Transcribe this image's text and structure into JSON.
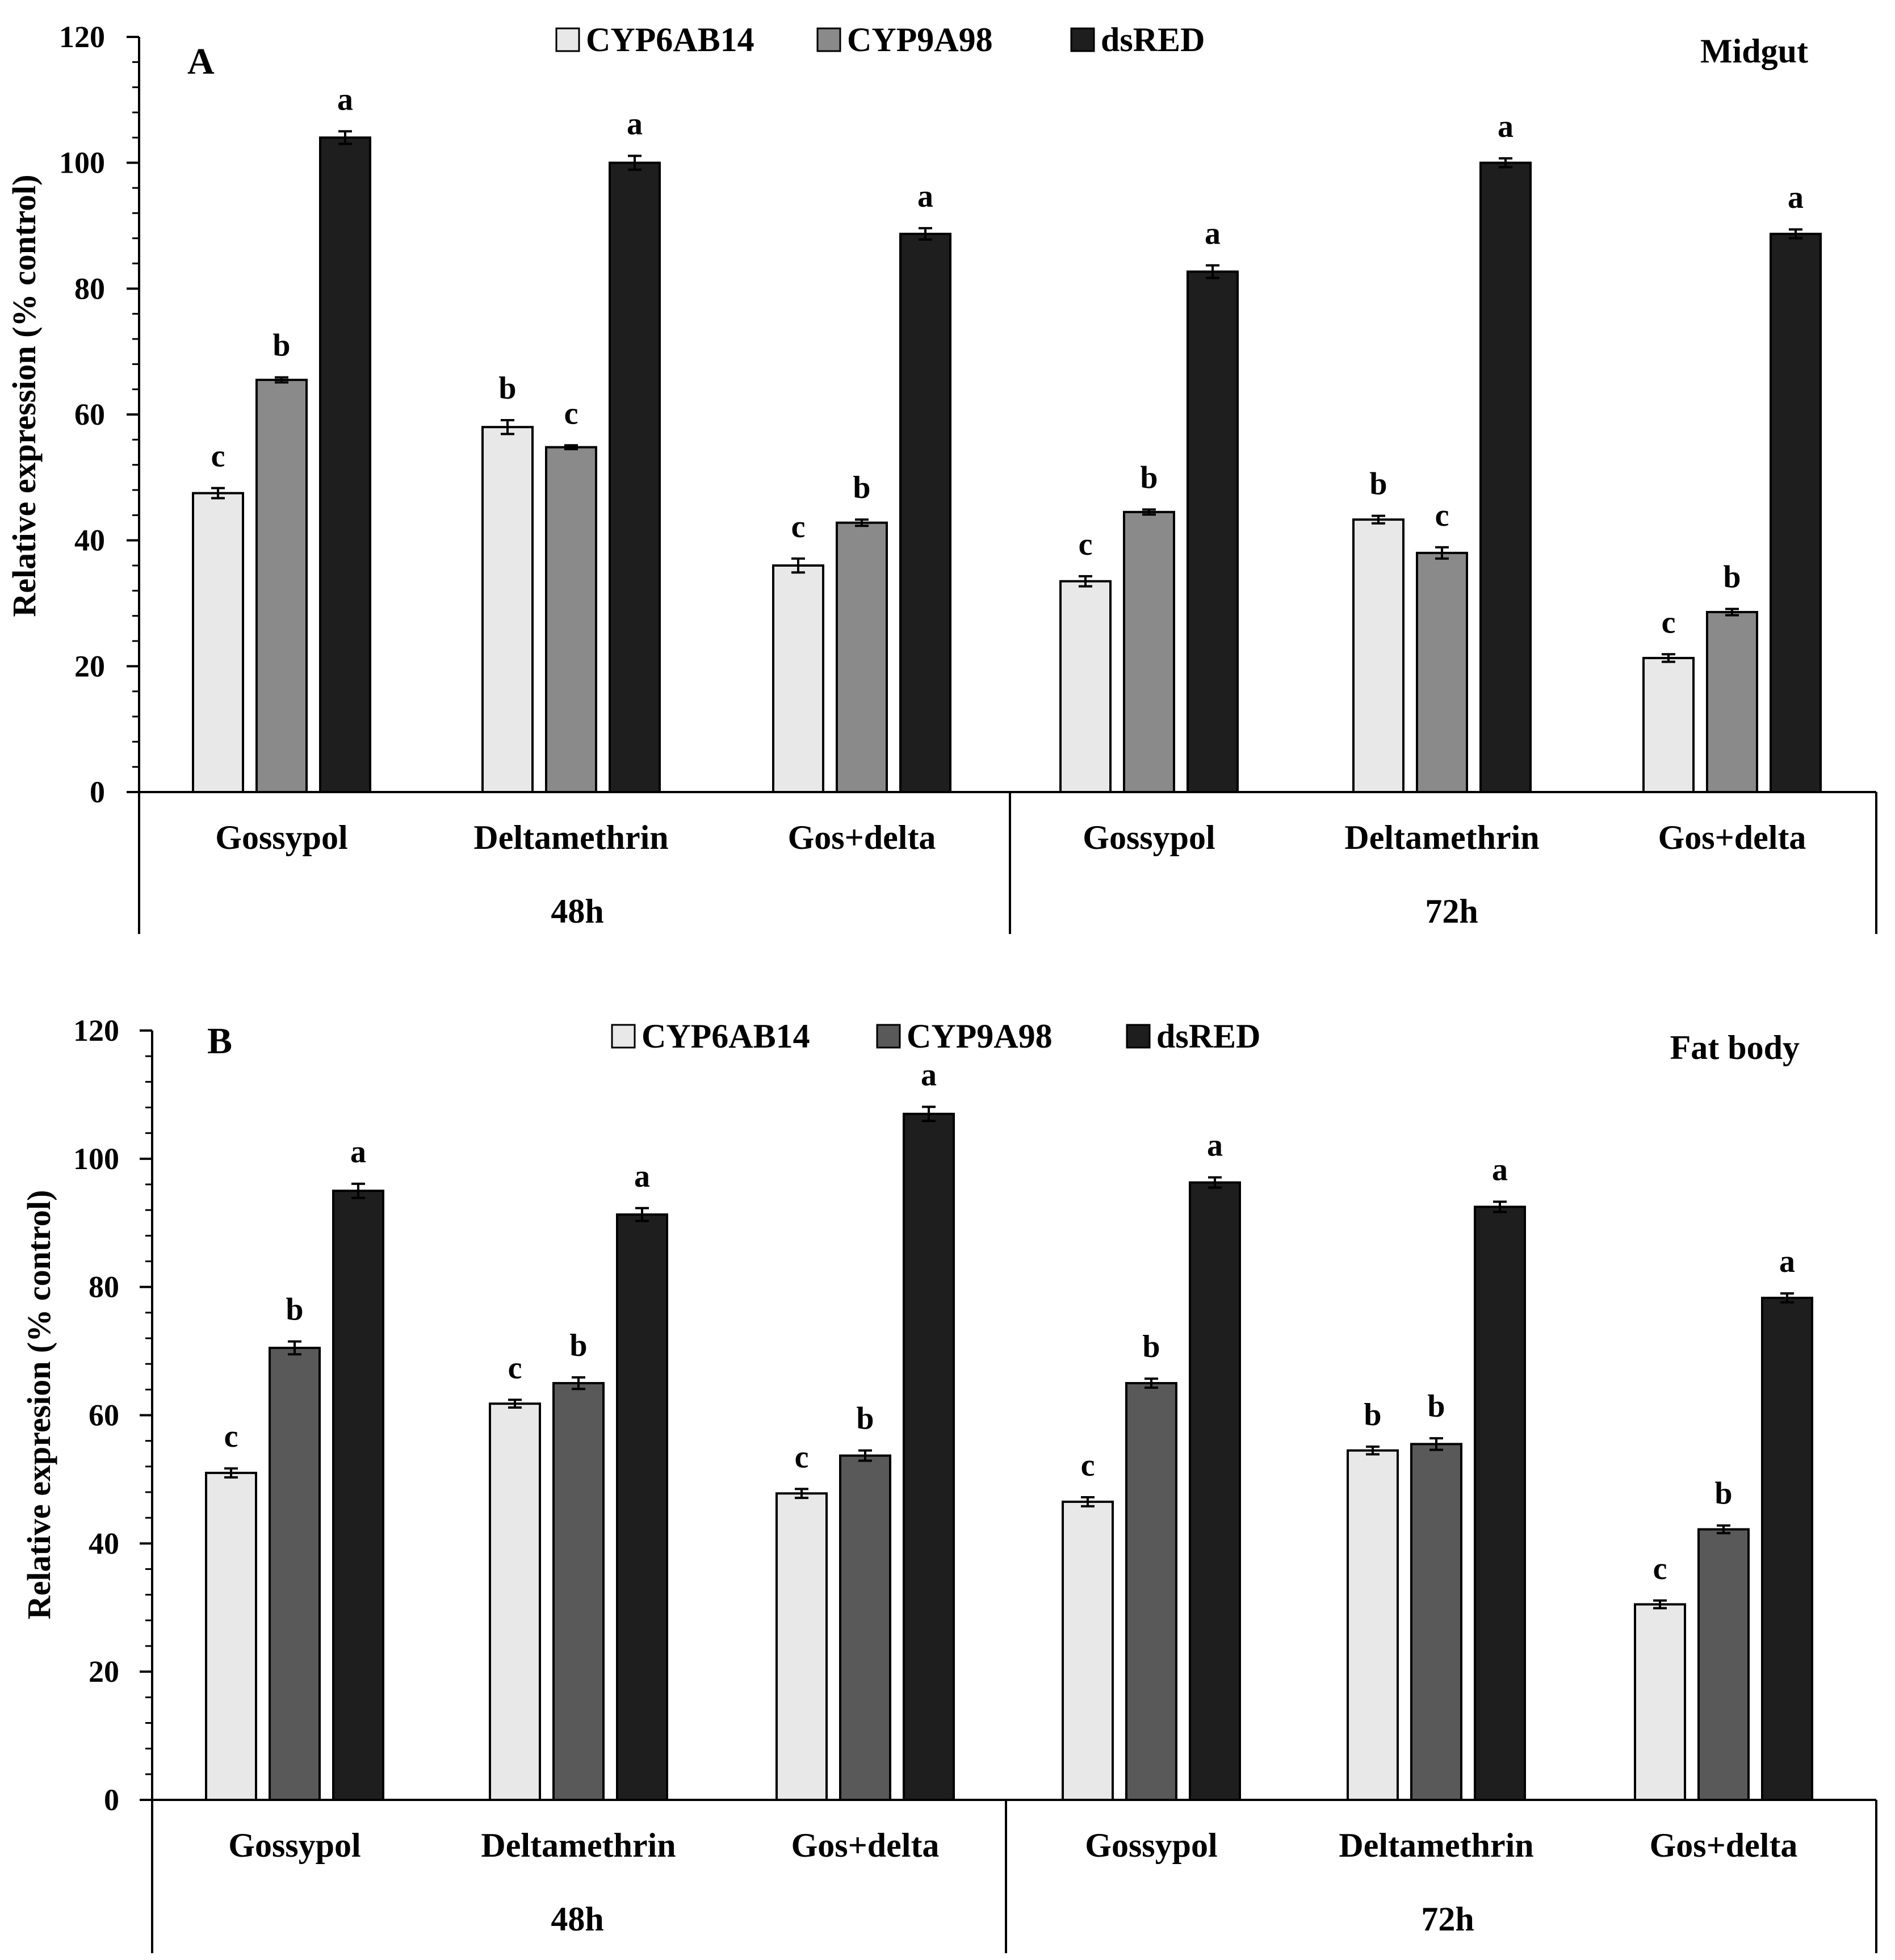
{
  "colors": {
    "CYP6AB14": "#e8e8e8",
    "CYP9A98_A": "#8a8a8a",
    "CYP9A98_B": "#595959",
    "dsRED": "#1e1e1e",
    "axis": "#000000"
  },
  "chart_data": [
    {
      "type": "bar",
      "panel": "A",
      "tissue": "Midgut",
      "ylabel": "Relative expression (% control)",
      "ylim": [
        0,
        120
      ],
      "yticks": [
        "0",
        "20",
        "40",
        "60",
        "80",
        "100",
        "120"
      ],
      "legend_position": "top-center",
      "groups": [
        "48h",
        "72h"
      ],
      "categories": [
        "Gossypol",
        "Deltamethrin",
        "Gos+delta",
        "Gossypol",
        "Deltamethrin",
        "Gos+delta"
      ],
      "series": [
        {
          "name": "CYP6AB14",
          "values": [
            47.5,
            58,
            36,
            33.5,
            43.3,
            21.3
          ],
          "errors": [
            0.8,
            1.1,
            1.1,
            0.8,
            0.6,
            0.6
          ],
          "sig": [
            "c",
            "b",
            "c",
            "c",
            "b",
            "c"
          ]
        },
        {
          "name": "CYP9A98",
          "values": [
            65.5,
            54.8,
            42.8,
            44.5,
            38,
            28.6
          ],
          "errors": [
            0.4,
            0.3,
            0.5,
            0.4,
            0.9,
            0.5
          ],
          "sig": [
            "b",
            "c",
            "b",
            "b",
            "c",
            "b"
          ]
        },
        {
          "name": "dsRED",
          "values": [
            104,
            100,
            88.7,
            82.7,
            100,
            88.7
          ],
          "errors": [
            1.0,
            1.1,
            0.9,
            1.0,
            0.7,
            0.7
          ],
          "sig": [
            "a",
            "a",
            "a",
            "a",
            "a",
            "a"
          ]
        }
      ]
    },
    {
      "type": "bar",
      "panel": "B",
      "tissue": "Fat body",
      "ylabel": "Relative expresion (% control)",
      "ylim": [
        0,
        120
      ],
      "yticks": [
        "0",
        "20",
        "40",
        "60",
        "80",
        "100",
        "120"
      ],
      "legend_position": "top-center",
      "groups": [
        "48h",
        "72h"
      ],
      "categories": [
        "Gossypol",
        "Deltamethrin",
        "Gos+delta",
        "Gossypol",
        "Deltamethrin",
        "Gos+delta"
      ],
      "series": [
        {
          "name": "CYP6AB14",
          "values": [
            51,
            61.8,
            47.8,
            46.5,
            54.5,
            30.5
          ],
          "errors": [
            0.7,
            0.6,
            0.7,
            0.7,
            0.6,
            0.6
          ],
          "sig": [
            "c",
            "c",
            "c",
            "c",
            "b",
            "c"
          ]
        },
        {
          "name": "CYP9A98",
          "values": [
            70.5,
            65,
            53.7,
            65,
            55.5,
            42.2
          ],
          "errors": [
            1.0,
            0.9,
            0.8,
            0.7,
            0.9,
            0.6
          ],
          "sig": [
            "b",
            "b",
            "b",
            "b",
            "b",
            "b"
          ]
        },
        {
          "name": "dsRED",
          "values": [
            95,
            91.3,
            107,
            96.3,
            92.5,
            78.3
          ],
          "errors": [
            1.1,
            1.0,
            1.1,
            0.8,
            0.8,
            0.7
          ],
          "sig": [
            "a",
            "a",
            "a",
            "a",
            "a",
            "a"
          ]
        }
      ]
    }
  ]
}
